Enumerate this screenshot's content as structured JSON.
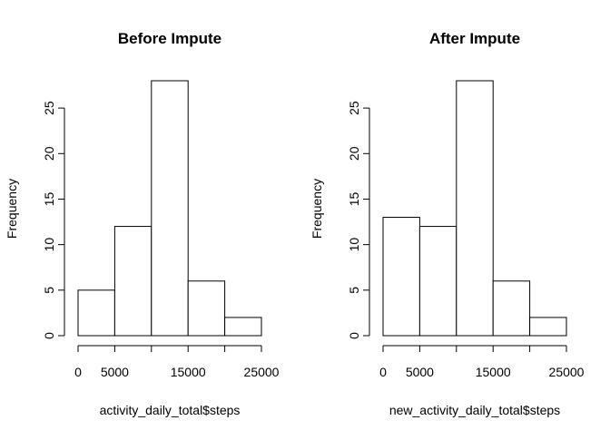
{
  "colors": {
    "background": "#ffffff",
    "bar_fill": "#ffffff",
    "bar_stroke": "#000000",
    "axis": "#000000"
  },
  "chart_data": [
    {
      "type": "bar",
      "title": "Before Impute",
      "xlabel": "activity_daily_total$steps",
      "ylabel": "Frequency",
      "bins": [
        [
          0,
          5000
        ],
        [
          5000,
          10000
        ],
        [
          10000,
          15000
        ],
        [
          15000,
          20000
        ],
        [
          20000,
          25000
        ]
      ],
      "values": [
        5,
        12,
        28,
        6,
        2
      ],
      "xlim": [
        0,
        25000
      ],
      "ylim": [
        0,
        28
      ],
      "xticks": [
        0,
        5000,
        10000,
        15000,
        20000,
        25000
      ],
      "xtick_labels": [
        "0",
        "5000",
        "",
        "15000",
        "",
        "25000"
      ],
      "yticks": [
        0,
        5,
        10,
        15,
        20,
        25
      ],
      "ytick_labels": [
        "0",
        "5",
        "10",
        "15",
        "20",
        "25"
      ],
      "grid": false,
      "legend": "none"
    },
    {
      "type": "bar",
      "title": "After Impute",
      "xlabel": "new_activity_daily_total$steps",
      "ylabel": "Frequency",
      "bins": [
        [
          0,
          5000
        ],
        [
          5000,
          10000
        ],
        [
          10000,
          15000
        ],
        [
          15000,
          20000
        ],
        [
          20000,
          25000
        ]
      ],
      "values": [
        13,
        12,
        28,
        6,
        2
      ],
      "xlim": [
        0,
        25000
      ],
      "ylim": [
        0,
        28
      ],
      "xticks": [
        0,
        5000,
        10000,
        15000,
        20000,
        25000
      ],
      "xtick_labels": [
        "0",
        "5000",
        "",
        "15000",
        "",
        "25000"
      ],
      "yticks": [
        0,
        5,
        10,
        15,
        20,
        25
      ],
      "ytick_labels": [
        "0",
        "5",
        "10",
        "15",
        "20",
        "25"
      ],
      "grid": false,
      "legend": "none"
    }
  ]
}
